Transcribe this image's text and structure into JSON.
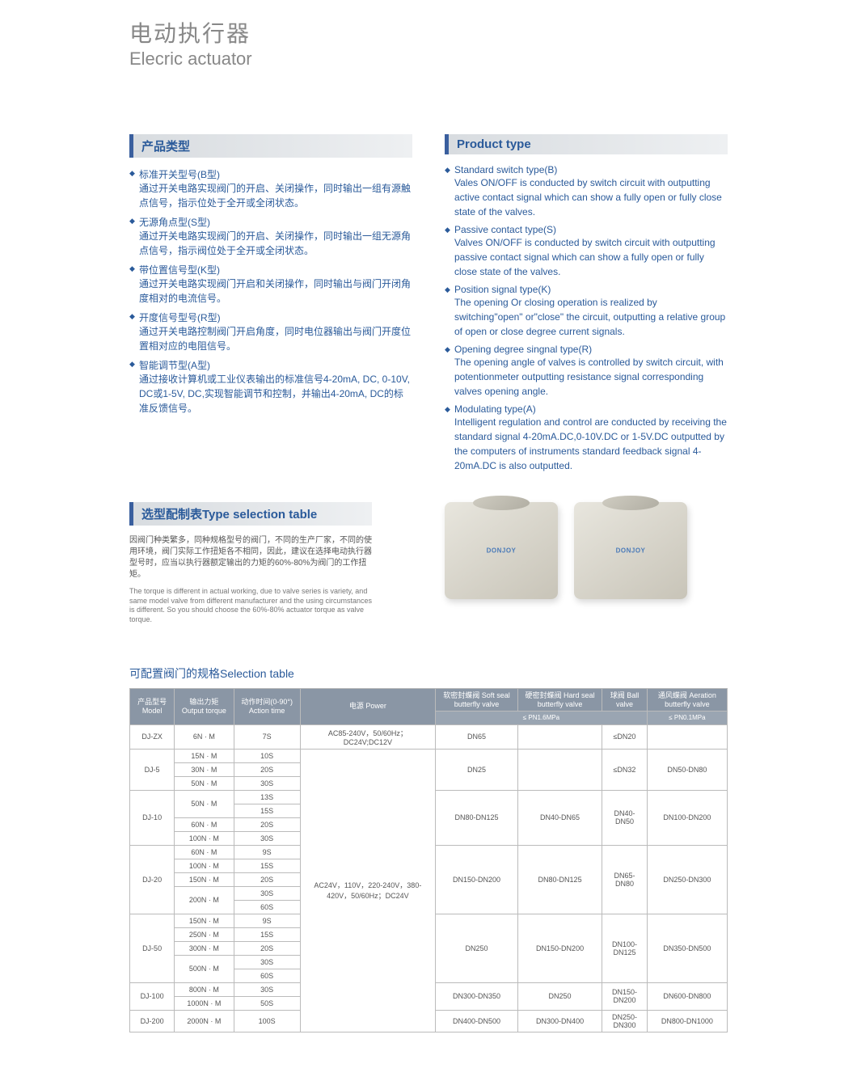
{
  "title": {
    "cn": "电动执行器",
    "en": "Elecric actuator"
  },
  "left": {
    "header": "产品类型",
    "items": [
      {
        "title": "标准开关型号(B型)",
        "body": "通过开关电路实现阀门的开启、关闭操作，同时输出一组有源触点信号，指示位处于全开或全闭状态。"
      },
      {
        "title": "无源角点型(S型)",
        "body": "通过开关电路实现阀门的开启、关闭操作，同时输出一组无源角点信号，指示阀位处于全开或全闭状态。"
      },
      {
        "title": "带位置信号型(K型)",
        "body": "通过开关电路实现阀门开启和关闭操作，同时输出与阀门开闭角度相对的电流信号。"
      },
      {
        "title": "开度信号型号(R型)",
        "body": "通过开关电路控制阀门开启角度，同时电位器输出与阀门开度位置相对应的电阻信号。"
      },
      {
        "title": "智能调节型(A型)",
        "body": "通过接收计算机或工业仪表输出的标准信号4-20mA, DC, 0-10V, DC或1-5V, DC,实现智能调节和控制，并输出4-20mA, DC的标准反馈信号。"
      }
    ]
  },
  "right": {
    "header": "Product type",
    "items": [
      {
        "title": "Standard switch type(B)",
        "body": "Vales ON/OFF is conducted by switch circuit with outputting active contact signal which can show a fully open or fully close state of the valves."
      },
      {
        "title": "Passive contact type(S)",
        "body": "Valves ON/OFF is conducted by switch circuit with outputting passive contact signal which can show a fully open or fully close state of the valves."
      },
      {
        "title": "Position signal type(K)",
        "body": "The opening Or closing operation is realized by switching\"open\" or\"close\" the circuit, outputting a relative group of open or close degree current signals."
      },
      {
        "title": "Opening degree singnal type(R)",
        "body": "The opening angle of valves is controlled by switch circuit, with potentionmeter outputting resistance signal corresponding valves opening angle."
      },
      {
        "title": "Modulating type(A)",
        "body": "Intelligent regulation and control are conducted by receiving the standard signal 4-20mA.DC,0-10V.DC or 1-5V.DC outputted by the computers of instruments standard feedback signal 4-20mA.DC is also outputted."
      }
    ]
  },
  "selection": {
    "header": "选型配制表Type selection table",
    "note_cn": "因阀门种类繁多，同种规格型号的阀门，不同的生产厂家，不同的使用环境，阀门实际工作扭矩各不相同，因此，建议在选择电动执行器型号时，应当以执行器额定输出的力矩的60%-80%为阀门的工作扭矩。",
    "note_en": "The torque is different in actual working, due to valve series is variety, and same model valve from different manufacturer and the using circumstances is different. So you should choose the 60%-80% actuator torque as valve torque."
  },
  "table": {
    "title": "可配置阀门的规格Selection table",
    "headers": {
      "model": "产品型号\nModel",
      "torque": "输出力矩\nOutput torque",
      "action": "动作时间(0-90°)\nAction time",
      "power": "电源\nPower",
      "soft": "软密封蝶阀\nSoft seal butterfly valve",
      "hard": "硬密封蝶阀\nHard seal butterfly valve",
      "ball": "球阀 Ball valve",
      "vent": "通风蝶阀\nAeration butterfly valve",
      "pn16": "≤ PN1.6MPa",
      "pn01": "≤ PN0.1MPa"
    },
    "power_zx": "AC85-240V，50/60Hz；DC24V;DC12V",
    "power_main": "AC24V，110V，220-240V，380-420V，50/60Hz；DC24V",
    "rows": [
      {
        "model": "DJ-ZX",
        "torque": "6N · M",
        "action": "7S",
        "soft": "DN65",
        "hard": "",
        "ball": "≤DN20",
        "vent": ""
      },
      {
        "model": "DJ-5",
        "sub": [
          {
            "torque": "15N · M",
            "action": "10S"
          },
          {
            "torque": "30N · M",
            "action": "20S"
          },
          {
            "torque": "50N · M",
            "action": "30S"
          }
        ],
        "soft": "DN25",
        "hard": "",
        "ball": "≤DN32",
        "vent": "DN50-DN80"
      },
      {
        "model": "DJ-10",
        "sub": [
          {
            "torque": "50N · M",
            "action": [
              "13S",
              "15S"
            ]
          },
          {
            "torque": "60N · M",
            "action": "20S"
          },
          {
            "torque": "100N · M",
            "action": "30S"
          }
        ],
        "soft": "DN80-DN125",
        "hard": "DN40-DN65",
        "ball": "DN40-DN50",
        "vent": "DN100-DN200"
      },
      {
        "model": "DJ-20",
        "sub": [
          {
            "torque": "60N · M",
            "action": "9S"
          },
          {
            "torque": "100N · M",
            "action": "15S"
          },
          {
            "torque": "150N · M",
            "action": "20S"
          },
          {
            "torque": "200N · M",
            "action": [
              "30S",
              "60S"
            ]
          }
        ],
        "soft": "DN150-DN200",
        "hard": "DN80-DN125",
        "ball": "DN65-DN80",
        "vent": "DN250-DN300"
      },
      {
        "model": "DJ-50",
        "sub": [
          {
            "torque": "150N · M",
            "action": "9S"
          },
          {
            "torque": "250N · M",
            "action": "15S"
          },
          {
            "torque": "300N · M",
            "action": "20S"
          },
          {
            "torque": "500N · M",
            "action": [
              "30S",
              "60S"
            ]
          }
        ],
        "soft": "DN250",
        "hard": "DN150-DN200",
        "ball": "DN100-DN125",
        "vent": "DN350-DN500"
      },
      {
        "model": "DJ-100",
        "sub": [
          {
            "torque": "800N · M",
            "action": "30S"
          },
          {
            "torque": "1000N · M",
            "action": "50S"
          }
        ],
        "soft": "DN300-DN350",
        "hard": "DN250",
        "ball": "DN150-DN200",
        "vent": "DN600-DN800"
      },
      {
        "model": "DJ-200",
        "sub": [
          {
            "torque": "2000N · M",
            "action": "100S"
          }
        ],
        "soft": "DN400-DN500",
        "hard": "DN300-DN400",
        "ball": "DN250-DN300",
        "vent": "DN800-DN1000"
      }
    ]
  }
}
